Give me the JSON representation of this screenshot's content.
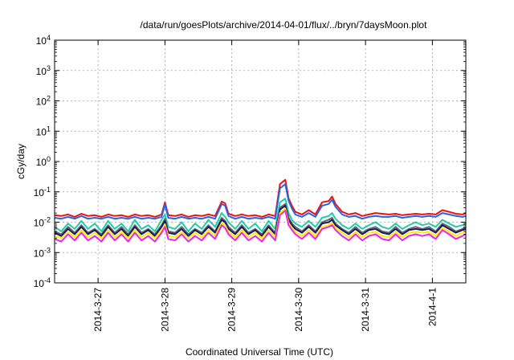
{
  "chart_data": {
    "type": "line",
    "title": "/data/run/goesPlots/archive/2014-04-01/flux/../bryn/7daysMoon.plot",
    "xlabel": "Coordinated Universal Time (UTC)",
    "ylabel": "cGy/day",
    "yscale": "log",
    "ylim": [
      0.0001,
      10000
    ],
    "xlim": [
      -0.65,
      5.5
    ],
    "grid": true,
    "x_unit": "days from 2014-3-27",
    "x_tick_labels": [
      "2014-3-27",
      "2014-3-28",
      "2014-3-29",
      "2014-3-30",
      "2014-3-31",
      "2014-4-1"
    ],
    "y_ticks": [
      {
        "value": 0.0001,
        "base": "10",
        "exp": "-4"
      },
      {
        "value": 0.001,
        "base": "10",
        "exp": "-3"
      },
      {
        "value": 0.01,
        "base": "10",
        "exp": "-2"
      },
      {
        "value": 0.1,
        "base": "10",
        "exp": "-1"
      },
      {
        "value": 1,
        "base": "10",
        "exp": "0"
      },
      {
        "value": 10,
        "base": "10",
        "exp": "1"
      },
      {
        "value": 100,
        "base": "10",
        "exp": "2"
      },
      {
        "value": 1000,
        "base": "10",
        "exp": "3"
      },
      {
        "value": 10000,
        "base": "10",
        "exp": "4"
      }
    ],
    "series": [
      {
        "color": "#ee1111",
        "x": [
          -0.65,
          -0.55,
          -0.45,
          -0.35,
          -0.25,
          -0.15,
          -0.05,
          0.05,
          0.15,
          0.25,
          0.35,
          0.45,
          0.55,
          0.65,
          0.75,
          0.85,
          0.95,
          1.0,
          1.05,
          1.15,
          1.25,
          1.35,
          1.45,
          1.55,
          1.65,
          1.75,
          1.85,
          1.9,
          1.95,
          2.05,
          2.15,
          2.25,
          2.35,
          2.45,
          2.55,
          2.65,
          2.72,
          2.8,
          2.85,
          2.9,
          2.95,
          3.05,
          3.15,
          3.25,
          3.35,
          3.45,
          3.5,
          3.55,
          3.65,
          3.75,
          3.85,
          3.95,
          4.05,
          4.15,
          4.25,
          4.35,
          4.45,
          4.55,
          4.65,
          4.75,
          4.85,
          4.95,
          5.05,
          5.15,
          5.25,
          5.35,
          5.45,
          5.5
        ],
        "values": [
          0.017,
          0.016,
          0.018,
          0.015,
          0.019,
          0.016,
          0.017,
          0.015,
          0.018,
          0.016,
          0.017,
          0.015,
          0.018,
          0.016,
          0.017,
          0.015,
          0.018,
          0.045,
          0.017,
          0.016,
          0.018,
          0.015,
          0.017,
          0.016,
          0.018,
          0.016,
          0.048,
          0.042,
          0.019,
          0.016,
          0.018,
          0.016,
          0.017,
          0.015,
          0.018,
          0.016,
          0.18,
          0.25,
          0.06,
          0.035,
          0.022,
          0.018,
          0.025,
          0.018,
          0.045,
          0.05,
          0.07,
          0.04,
          0.022,
          0.018,
          0.02,
          0.016,
          0.018,
          0.02,
          0.019,
          0.018,
          0.019,
          0.017,
          0.018,
          0.019,
          0.018,
          0.019,
          0.018,
          0.025,
          0.022,
          0.019,
          0.018,
          0.02
        ]
      },
      {
        "color": "#2266ee",
        "x": [
          -0.65,
          -0.55,
          -0.45,
          -0.35,
          -0.25,
          -0.15,
          -0.05,
          0.05,
          0.15,
          0.25,
          0.35,
          0.45,
          0.55,
          0.65,
          0.75,
          0.85,
          0.95,
          1.0,
          1.05,
          1.15,
          1.25,
          1.35,
          1.45,
          1.55,
          1.65,
          1.75,
          1.85,
          1.9,
          1.95,
          2.05,
          2.15,
          2.25,
          2.35,
          2.45,
          2.55,
          2.65,
          2.72,
          2.8,
          2.85,
          2.9,
          2.95,
          3.05,
          3.15,
          3.25,
          3.35,
          3.45,
          3.5,
          3.55,
          3.65,
          3.75,
          3.85,
          3.95,
          4.05,
          4.15,
          4.25,
          4.35,
          4.45,
          4.55,
          4.65,
          4.75,
          4.85,
          4.95,
          5.05,
          5.15,
          5.25,
          5.35,
          5.45,
          5.5
        ],
        "values": [
          0.014,
          0.013,
          0.015,
          0.013,
          0.016,
          0.013,
          0.014,
          0.013,
          0.015,
          0.013,
          0.014,
          0.013,
          0.015,
          0.013,
          0.014,
          0.013,
          0.015,
          0.038,
          0.014,
          0.013,
          0.015,
          0.013,
          0.014,
          0.013,
          0.015,
          0.013,
          0.04,
          0.035,
          0.016,
          0.013,
          0.015,
          0.013,
          0.014,
          0.013,
          0.015,
          0.013,
          0.13,
          0.18,
          0.05,
          0.028,
          0.018,
          0.015,
          0.02,
          0.015,
          0.035,
          0.04,
          0.055,
          0.032,
          0.018,
          0.015,
          0.016,
          0.013,
          0.015,
          0.016,
          0.015,
          0.015,
          0.016,
          0.014,
          0.015,
          0.016,
          0.015,
          0.016,
          0.015,
          0.02,
          0.018,
          0.016,
          0.015,
          0.016
        ]
      },
      {
        "color": "#22ccaa",
        "x": [
          -0.65,
          -0.55,
          -0.45,
          -0.35,
          -0.25,
          -0.15,
          -0.05,
          0.05,
          0.15,
          0.25,
          0.35,
          0.45,
          0.55,
          0.65,
          0.75,
          0.85,
          0.95,
          1.0,
          1.05,
          1.15,
          1.25,
          1.35,
          1.45,
          1.55,
          1.65,
          1.75,
          1.85,
          1.9,
          1.95,
          2.05,
          2.15,
          2.25,
          2.35,
          2.45,
          2.55,
          2.65,
          2.72,
          2.8,
          2.85,
          2.9,
          2.95,
          3.05,
          3.15,
          3.25,
          3.35,
          3.45,
          3.5,
          3.55,
          3.65,
          3.75,
          3.85,
          3.95,
          4.05,
          4.15,
          4.25,
          4.35,
          4.45,
          4.55,
          4.65,
          4.75,
          4.85,
          4.95,
          5.05,
          5.15,
          5.25,
          5.35,
          5.45,
          5.5
        ],
        "values": [
          0.007,
          0.005,
          0.009,
          0.006,
          0.011,
          0.006,
          0.009,
          0.005,
          0.011,
          0.006,
          0.009,
          0.005,
          0.012,
          0.006,
          0.008,
          0.005,
          0.012,
          0.018,
          0.007,
          0.006,
          0.01,
          0.005,
          0.009,
          0.006,
          0.012,
          0.007,
          0.02,
          0.015,
          0.01,
          0.006,
          0.011,
          0.006,
          0.009,
          0.005,
          0.011,
          0.006,
          0.045,
          0.06,
          0.02,
          0.012,
          0.009,
          0.007,
          0.011,
          0.007,
          0.014,
          0.016,
          0.02,
          0.013,
          0.008,
          0.006,
          0.009,
          0.006,
          0.008,
          0.01,
          0.007,
          0.006,
          0.009,
          0.006,
          0.008,
          0.01,
          0.008,
          0.009,
          0.007,
          0.012,
          0.009,
          0.007,
          0.008,
          0.009
        ]
      },
      {
        "color": "#666666",
        "x": [
          -0.65,
          -0.55,
          -0.45,
          -0.35,
          -0.25,
          -0.15,
          -0.05,
          0.05,
          0.15,
          0.25,
          0.35,
          0.45,
          0.55,
          0.65,
          0.75,
          0.85,
          0.95,
          1.0,
          1.05,
          1.15,
          1.25,
          1.35,
          1.45,
          1.55,
          1.65,
          1.75,
          1.85,
          1.9,
          1.95,
          2.05,
          2.15,
          2.25,
          2.35,
          2.45,
          2.55,
          2.65,
          2.72,
          2.8,
          2.85,
          2.9,
          2.95,
          3.05,
          3.15,
          3.25,
          3.35,
          3.45,
          3.5,
          3.55,
          3.65,
          3.75,
          3.85,
          3.95,
          4.05,
          4.15,
          4.25,
          4.35,
          4.45,
          4.55,
          4.65,
          4.75,
          4.85,
          4.95,
          5.05,
          5.15,
          5.25,
          5.35,
          5.45,
          5.5
        ],
        "values": [
          0.005,
          0.004,
          0.007,
          0.0045,
          0.008,
          0.0045,
          0.006,
          0.004,
          0.008,
          0.0045,
          0.007,
          0.004,
          0.008,
          0.0045,
          0.006,
          0.004,
          0.008,
          0.013,
          0.005,
          0.0045,
          0.007,
          0.004,
          0.006,
          0.0045,
          0.008,
          0.005,
          0.014,
          0.011,
          0.007,
          0.0045,
          0.008,
          0.0045,
          0.006,
          0.004,
          0.008,
          0.0045,
          0.03,
          0.04,
          0.014,
          0.009,
          0.007,
          0.005,
          0.008,
          0.005,
          0.01,
          0.012,
          0.014,
          0.009,
          0.006,
          0.0045,
          0.007,
          0.0045,
          0.006,
          0.007,
          0.005,
          0.0045,
          0.007,
          0.0045,
          0.006,
          0.007,
          0.006,
          0.007,
          0.005,
          0.009,
          0.007,
          0.005,
          0.006,
          0.007
        ]
      },
      {
        "color": "#1a1a66",
        "x": [
          -0.65,
          -0.55,
          -0.45,
          -0.35,
          -0.25,
          -0.15,
          -0.05,
          0.05,
          0.15,
          0.25,
          0.35,
          0.45,
          0.55,
          0.65,
          0.75,
          0.85,
          0.95,
          1.0,
          1.05,
          1.15,
          1.25,
          1.35,
          1.45,
          1.55,
          1.65,
          1.75,
          1.85,
          1.9,
          1.95,
          2.05,
          2.15,
          2.25,
          2.35,
          2.45,
          2.55,
          2.65,
          2.72,
          2.8,
          2.85,
          2.9,
          2.95,
          3.05,
          3.15,
          3.25,
          3.35,
          3.45,
          3.5,
          3.55,
          3.65,
          3.75,
          3.85,
          3.95,
          4.05,
          4.15,
          4.25,
          4.35,
          4.45,
          4.55,
          4.65,
          4.75,
          4.85,
          4.95,
          5.05,
          5.15,
          5.25,
          5.35,
          5.45,
          5.5
        ],
        "values": [
          0.0045,
          0.0035,
          0.006,
          0.004,
          0.007,
          0.004,
          0.0055,
          0.0035,
          0.007,
          0.004,
          0.006,
          0.0035,
          0.007,
          0.004,
          0.0055,
          0.0035,
          0.007,
          0.011,
          0.0045,
          0.004,
          0.006,
          0.0035,
          0.0055,
          0.004,
          0.007,
          0.0045,
          0.012,
          0.01,
          0.006,
          0.004,
          0.007,
          0.004,
          0.0055,
          0.0035,
          0.007,
          0.004,
          0.026,
          0.035,
          0.012,
          0.008,
          0.006,
          0.0045,
          0.007,
          0.0045,
          0.009,
          0.01,
          0.012,
          0.008,
          0.0055,
          0.004,
          0.006,
          0.004,
          0.0055,
          0.006,
          0.0045,
          0.004,
          0.006,
          0.004,
          0.0055,
          0.006,
          0.0055,
          0.006,
          0.0045,
          0.008,
          0.006,
          0.0045,
          0.0055,
          0.006
        ]
      },
      {
        "color": "#ffee00",
        "x": [
          -0.65,
          -0.55,
          -0.45,
          -0.35,
          -0.25,
          -0.15,
          -0.05,
          0.05,
          0.15,
          0.25,
          0.35,
          0.45,
          0.55,
          0.65,
          0.75,
          0.85,
          0.95,
          1.0,
          1.05,
          1.15,
          1.25,
          1.35,
          1.45,
          1.55,
          1.65,
          1.75,
          1.85,
          1.9,
          1.95,
          2.05,
          2.15,
          2.25,
          2.35,
          2.45,
          2.55,
          2.65,
          2.72,
          2.8,
          2.85,
          2.9,
          2.95,
          3.05,
          3.15,
          3.25,
          3.35,
          3.45,
          3.5,
          3.55,
          3.65,
          3.75,
          3.85,
          3.95,
          4.05,
          4.15,
          4.25,
          4.35,
          4.45,
          4.55,
          4.65,
          4.75,
          4.85,
          4.95,
          5.05,
          5.15,
          5.25,
          5.35,
          5.45,
          5.5
        ],
        "values": [
          0.0035,
          0.003,
          0.0048,
          0.0032,
          0.0055,
          0.0032,
          0.0045,
          0.003,
          0.0055,
          0.0032,
          0.0048,
          0.003,
          0.0055,
          0.0032,
          0.0045,
          0.003,
          0.0055,
          0.0085,
          0.0035,
          0.0032,
          0.0048,
          0.003,
          0.0045,
          0.0032,
          0.0055,
          0.0035,
          0.0095,
          0.008,
          0.0048,
          0.0032,
          0.0055,
          0.0032,
          0.0045,
          0.003,
          0.0055,
          0.0032,
          0.02,
          0.028,
          0.0095,
          0.0065,
          0.0048,
          0.0035,
          0.0055,
          0.0035,
          0.007,
          0.008,
          0.0095,
          0.0065,
          0.0045,
          0.0032,
          0.0048,
          0.0032,
          0.0045,
          0.0048,
          0.0035,
          0.0032,
          0.0048,
          0.0032,
          0.0045,
          0.0048,
          0.0045,
          0.0048,
          0.0035,
          0.0065,
          0.0048,
          0.0035,
          0.0045,
          0.0048
        ]
      },
      {
        "color": "#ee22ee",
        "x": [
          -0.65,
          -0.55,
          -0.45,
          -0.35,
          -0.25,
          -0.15,
          -0.05,
          0.05,
          0.15,
          0.25,
          0.35,
          0.45,
          0.55,
          0.65,
          0.75,
          0.85,
          0.95,
          1.0,
          1.05,
          1.15,
          1.25,
          1.35,
          1.45,
          1.55,
          1.65,
          1.75,
          1.85,
          1.9,
          1.95,
          2.05,
          2.15,
          2.25,
          2.35,
          2.45,
          2.55,
          2.65,
          2.72,
          2.8,
          2.85,
          2.9,
          2.95,
          3.05,
          3.15,
          3.25,
          3.35,
          3.45,
          3.5,
          3.55,
          3.65,
          3.75,
          3.85,
          3.95,
          4.05,
          4.15,
          4.25,
          4.35,
          4.45,
          4.55,
          4.65,
          4.75,
          4.85,
          4.95,
          5.05,
          5.15,
          5.25,
          5.35,
          5.45,
          5.5
        ],
        "values": [
          0.0028,
          0.0023,
          0.004,
          0.0025,
          0.0045,
          0.0025,
          0.0035,
          0.0023,
          0.0045,
          0.0025,
          0.004,
          0.0023,
          0.0045,
          0.0025,
          0.0035,
          0.0023,
          0.0045,
          0.007,
          0.0028,
          0.0025,
          0.004,
          0.0023,
          0.0035,
          0.0025,
          0.0045,
          0.0028,
          0.008,
          0.0065,
          0.004,
          0.0025,
          0.0045,
          0.0025,
          0.0035,
          0.0023,
          0.0045,
          0.0025,
          0.017,
          0.024,
          0.008,
          0.0055,
          0.004,
          0.0028,
          0.0045,
          0.0028,
          0.006,
          0.007,
          0.008,
          0.0055,
          0.0035,
          0.0025,
          0.004,
          0.0025,
          0.0035,
          0.004,
          0.0028,
          0.0025,
          0.004,
          0.0025,
          0.0035,
          0.004,
          0.0035,
          0.004,
          0.0028,
          0.0055,
          0.004,
          0.0028,
          0.0035,
          0.004
        ]
      }
    ]
  }
}
